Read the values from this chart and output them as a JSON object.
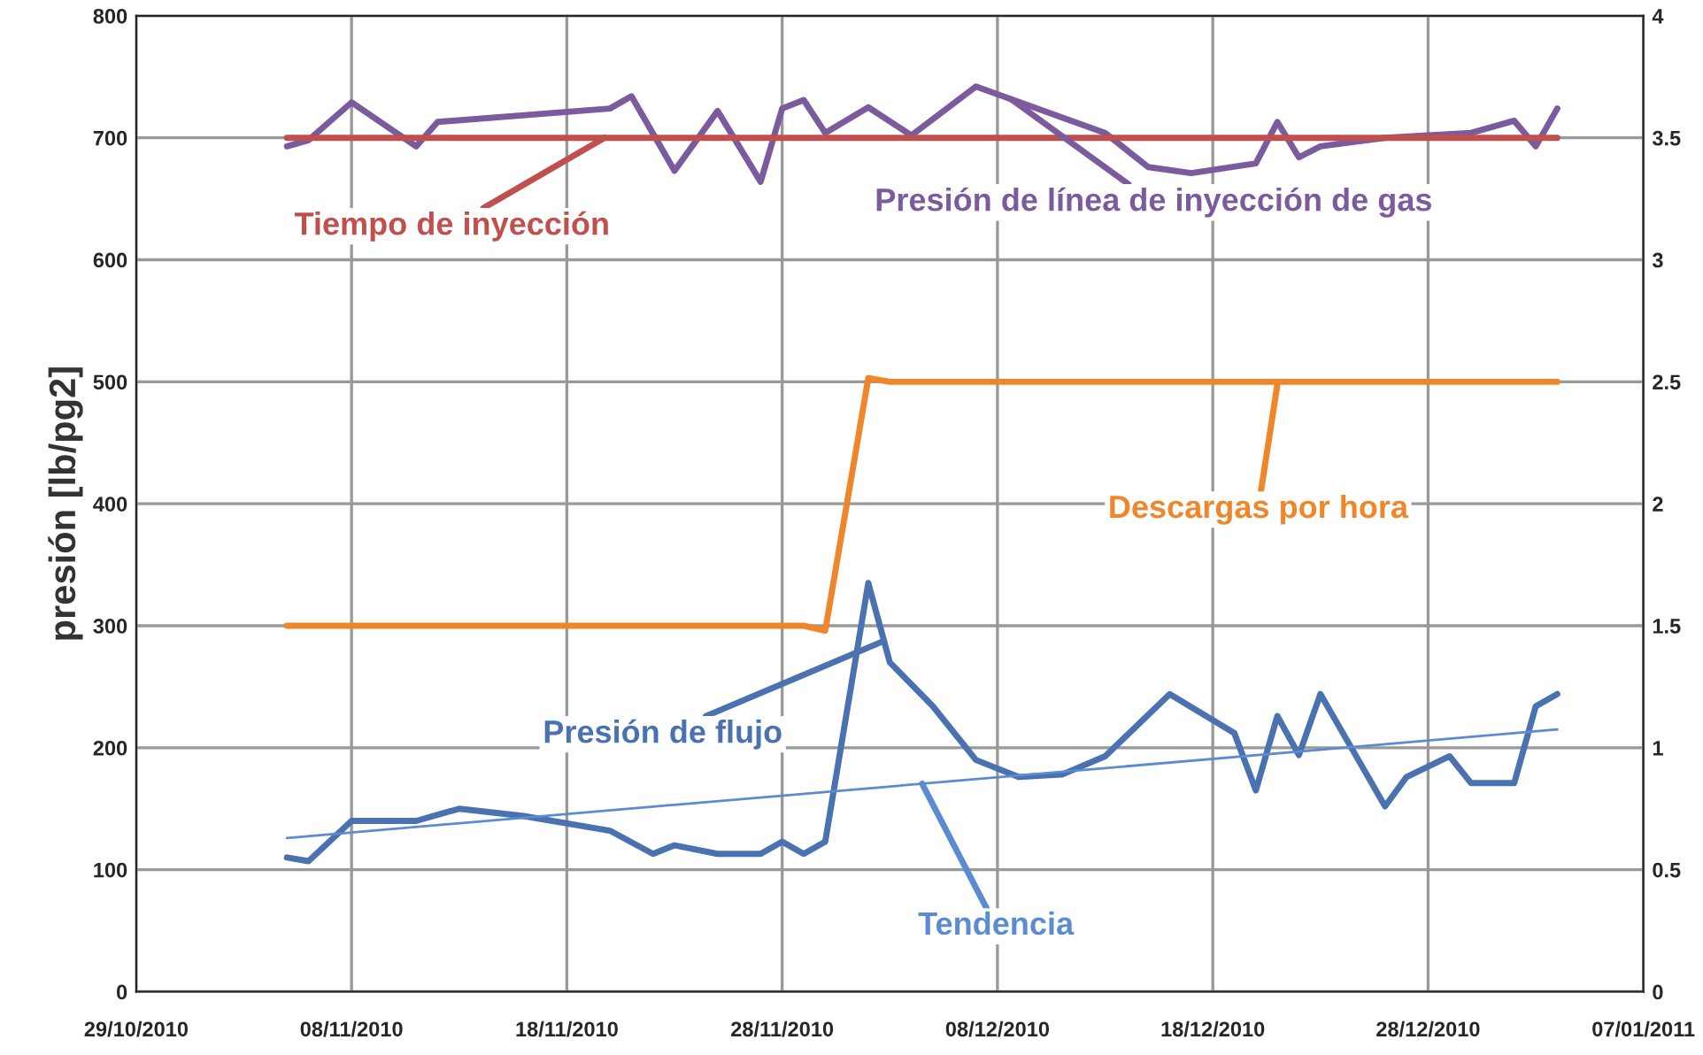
{
  "chart_data": {
    "type": "line",
    "ylabel": "presión [lb/pg2]",
    "xlim": [
      "2010-10-29",
      "2011-01-07"
    ],
    "xticks": [
      {
        "value": "2010-10-29",
        "label": "29/10/2010"
      },
      {
        "value": "2010-11-08",
        "label": "08/11/2010"
      },
      {
        "value": "2010-11-18",
        "label": "18/11/2010"
      },
      {
        "value": "2010-11-28",
        "label": "28/11/2010"
      },
      {
        "value": "2010-12-08",
        "label": "08/12/2010"
      },
      {
        "value": "2010-12-18",
        "label": "18/12/2010"
      },
      {
        "value": "2010-12-28",
        "label": "28/12/2010"
      },
      {
        "value": "2011-01-07",
        "label": "07/01/2011"
      }
    ],
    "ylim": [
      0,
      800
    ],
    "yticks": [
      0,
      100,
      200,
      300,
      400,
      500,
      600,
      700,
      800
    ],
    "y2lim": [
      0,
      4
    ],
    "y2ticks": [
      0,
      0.5,
      1,
      1.5,
      2,
      2.5,
      3,
      3.5,
      4
    ],
    "grid": true,
    "marker": "none",
    "series": [
      {
        "name": "Presión de flujo",
        "color": "#4a72b0",
        "x": [
          "2010-11-05",
          "2010-11-06",
          "2010-11-08",
          "2010-11-11",
          "2010-11-13",
          "2010-11-16",
          "2010-11-20",
          "2010-11-22",
          "2010-11-23",
          "2010-11-25",
          "2010-11-27",
          "2010-11-28",
          "2010-11-29",
          "2010-11-30",
          "2010-12-02",
          "2010-12-03",
          "2010-12-05",
          "2010-12-07",
          "2010-12-09",
          "2010-12-11",
          "2010-12-13",
          "2010-12-16",
          "2010-12-19",
          "2010-12-20",
          "2010-12-21",
          "2010-12-22",
          "2010-12-23",
          "2010-12-26",
          "2010-12-27",
          "2010-12-29",
          "2010-12-30",
          "2011-01-01",
          "2011-01-02",
          "2011-01-03"
        ],
        "values": [
          110,
          107,
          140,
          140,
          150,
          144,
          132,
          113,
          120,
          113,
          113,
          123,
          113,
          123,
          335,
          270,
          234,
          190,
          176,
          178,
          193,
          244,
          212,
          165,
          226,
          194,
          244,
          152,
          176,
          193,
          171,
          171,
          234,
          244
        ]
      },
      {
        "name": "Tendencia",
        "color": "#5b8bd0",
        "x": [
          "2010-11-05",
          "2011-01-03"
        ],
        "values": [
          126,
          215
        ]
      },
      {
        "name": "Descargas por hora",
        "color": "#f0862a",
        "x": [
          "2010-11-05",
          "2010-11-29",
          "2010-11-30",
          "2010-12-02",
          "2010-12-03",
          "2011-01-03"
        ],
        "values": [
          300,
          300,
          296,
          503,
          500,
          500
        ]
      },
      {
        "name": "Presión de línea de inyección de gas",
        "color": "#7b5a9e",
        "x": [
          "2010-11-05",
          "2010-11-06",
          "2010-11-08",
          "2010-11-11",
          "2010-11-12",
          "2010-11-20",
          "2010-11-21",
          "2010-11-23",
          "2010-11-25",
          "2010-11-27",
          "2010-11-28",
          "2010-11-29",
          "2010-11-30",
          "2010-12-02",
          "2010-12-04",
          "2010-12-07",
          "2010-12-13",
          "2010-12-15",
          "2010-12-17",
          "2010-12-20",
          "2010-12-21",
          "2010-12-22",
          "2010-12-23",
          "2010-12-26",
          "2010-12-30",
          "2011-01-01",
          "2011-01-02",
          "2011-01-03"
        ],
        "values": [
          693,
          698,
          729,
          693,
          713,
          724,
          734,
          673,
          722,
          664,
          724,
          731,
          704,
          725,
          702,
          742,
          704,
          676,
          671,
          679,
          713,
          684,
          693,
          700,
          704,
          714,
          693,
          724
        ]
      },
      {
        "name": "Tiempo de inyección",
        "color": "#c0504d",
        "x": [
          "2010-11-05",
          "2011-01-03"
        ],
        "values": [
          700,
          700
        ]
      }
    ]
  }
}
